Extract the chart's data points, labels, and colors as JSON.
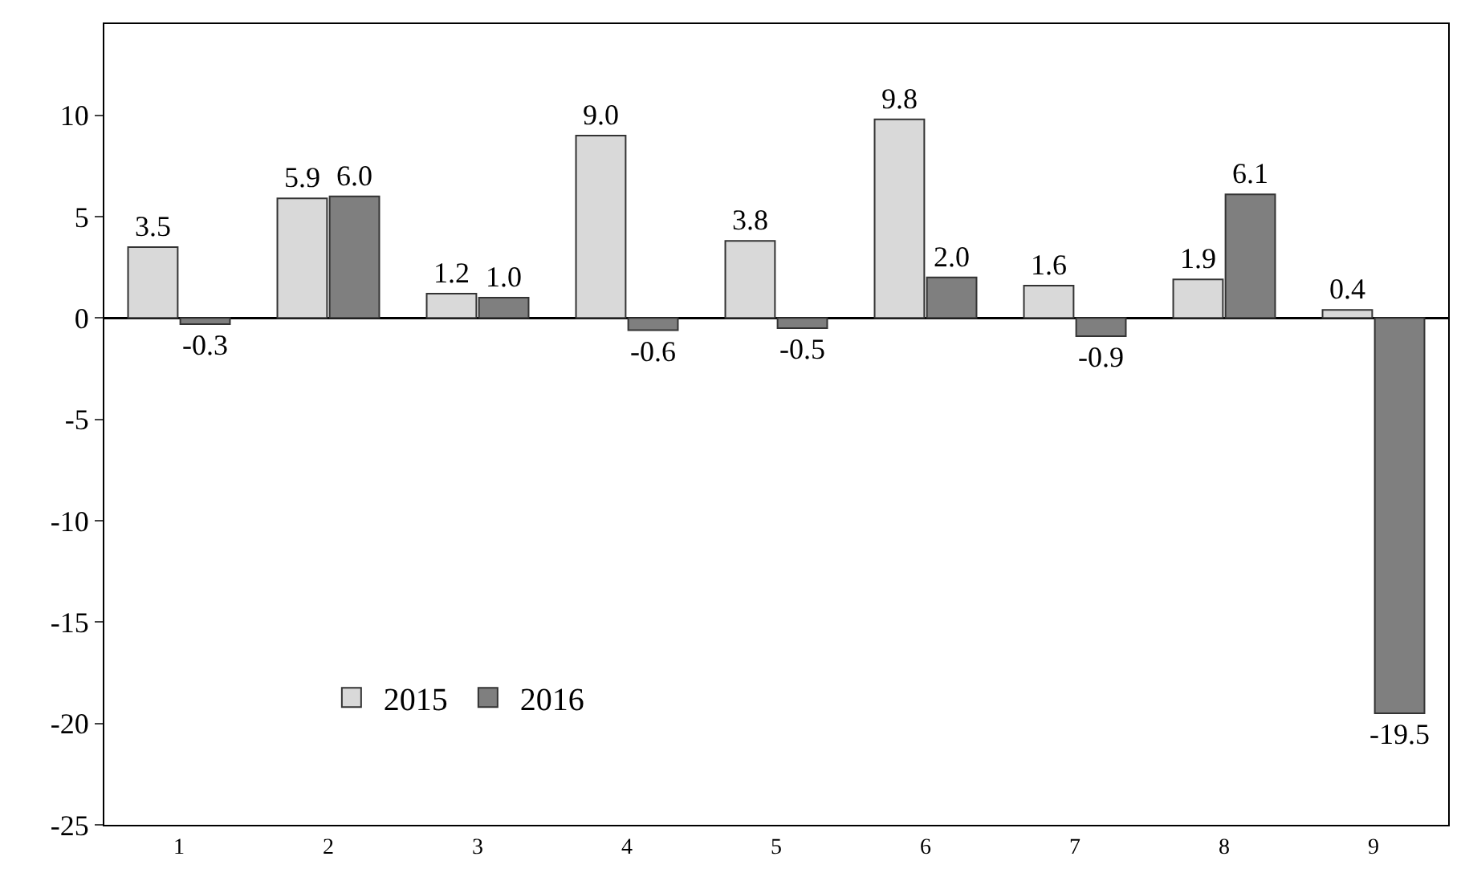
{
  "chart_data": {
    "type": "bar",
    "categories": [
      "1",
      "2",
      "3",
      "4",
      "5",
      "6",
      "7",
      "8",
      "9"
    ],
    "series": [
      {
        "name": "2015",
        "color": "#d9d9d9",
        "values": [
          3.5,
          5.9,
          1.2,
          9.0,
          3.8,
          9.8,
          1.6,
          1.9,
          0.4
        ],
        "value_labels": [
          "3.5",
          "5.9",
          "1.2",
          "9.0",
          "3.8",
          "9.8",
          "1.6",
          "1.9",
          "0.4"
        ]
      },
      {
        "name": "2016",
        "color": "#7f7f7f",
        "values": [
          -0.3,
          6.0,
          1.0,
          -0.6,
          -0.5,
          2.0,
          -0.9,
          6.1,
          -19.5
        ],
        "value_labels": [
          "-0.3",
          "6.0",
          "1.0",
          "-0.6",
          "-0.5",
          "2.0",
          "-0.9",
          "6.1",
          "-19.5"
        ]
      }
    ],
    "ylim": [
      -25,
      14.5
    ],
    "yticks": [
      -25,
      -20,
      -15,
      -10,
      -5,
      0,
      5,
      10
    ],
    "legend": "bottom left"
  }
}
